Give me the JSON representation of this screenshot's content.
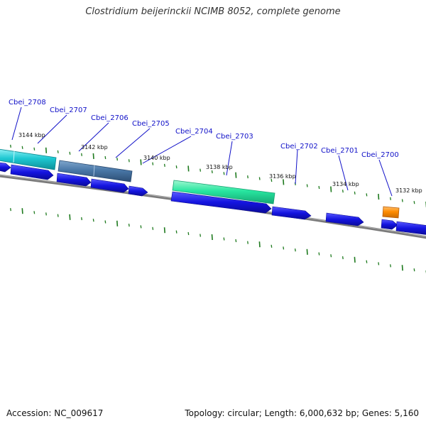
{
  "title": "Clostridium beijerinckii NCIMB 8052, complete genome",
  "footer": {
    "accession": "Accession: NC_009617",
    "summary": "Topology: circular; Length: 6,000,632 bp; Genes: 5,160"
  },
  "colors": {
    "backbone": "#7a7a7a",
    "cds": "#1414e0",
    "tick": "#1e7a1e",
    "label": "#1010c8",
    "feature_cyan": "#1ec8d2",
    "feature_steel": "#4a78a8",
    "feature_mint": "#28e6a0",
    "feature_orange": "#ff8c00"
  },
  "genes": [
    {
      "id": "cbei-2708",
      "label": "Cbei_2708"
    },
    {
      "id": "cbei-2707",
      "label": "Cbei_2707"
    },
    {
      "id": "cbei-2706",
      "label": "Cbei_2706"
    },
    {
      "id": "cbei-2705",
      "label": "Cbei_2705"
    },
    {
      "id": "cbei-2704",
      "label": "Cbei_2704"
    },
    {
      "id": "cbei-2703",
      "label": "Cbei_2703"
    },
    {
      "id": "cbei-2702",
      "label": "Cbei_2702"
    },
    {
      "id": "cbei-2701",
      "label": "Cbei_2701"
    },
    {
      "id": "cbei-2700",
      "label": "Cbei_2700"
    }
  ],
  "kbp_labels": [
    "3144 kbp",
    "3142 kbp",
    "3140 kbp",
    "3138 kbp",
    "3136 kbp",
    "3134 kbp",
    "3132 kbp"
  ]
}
